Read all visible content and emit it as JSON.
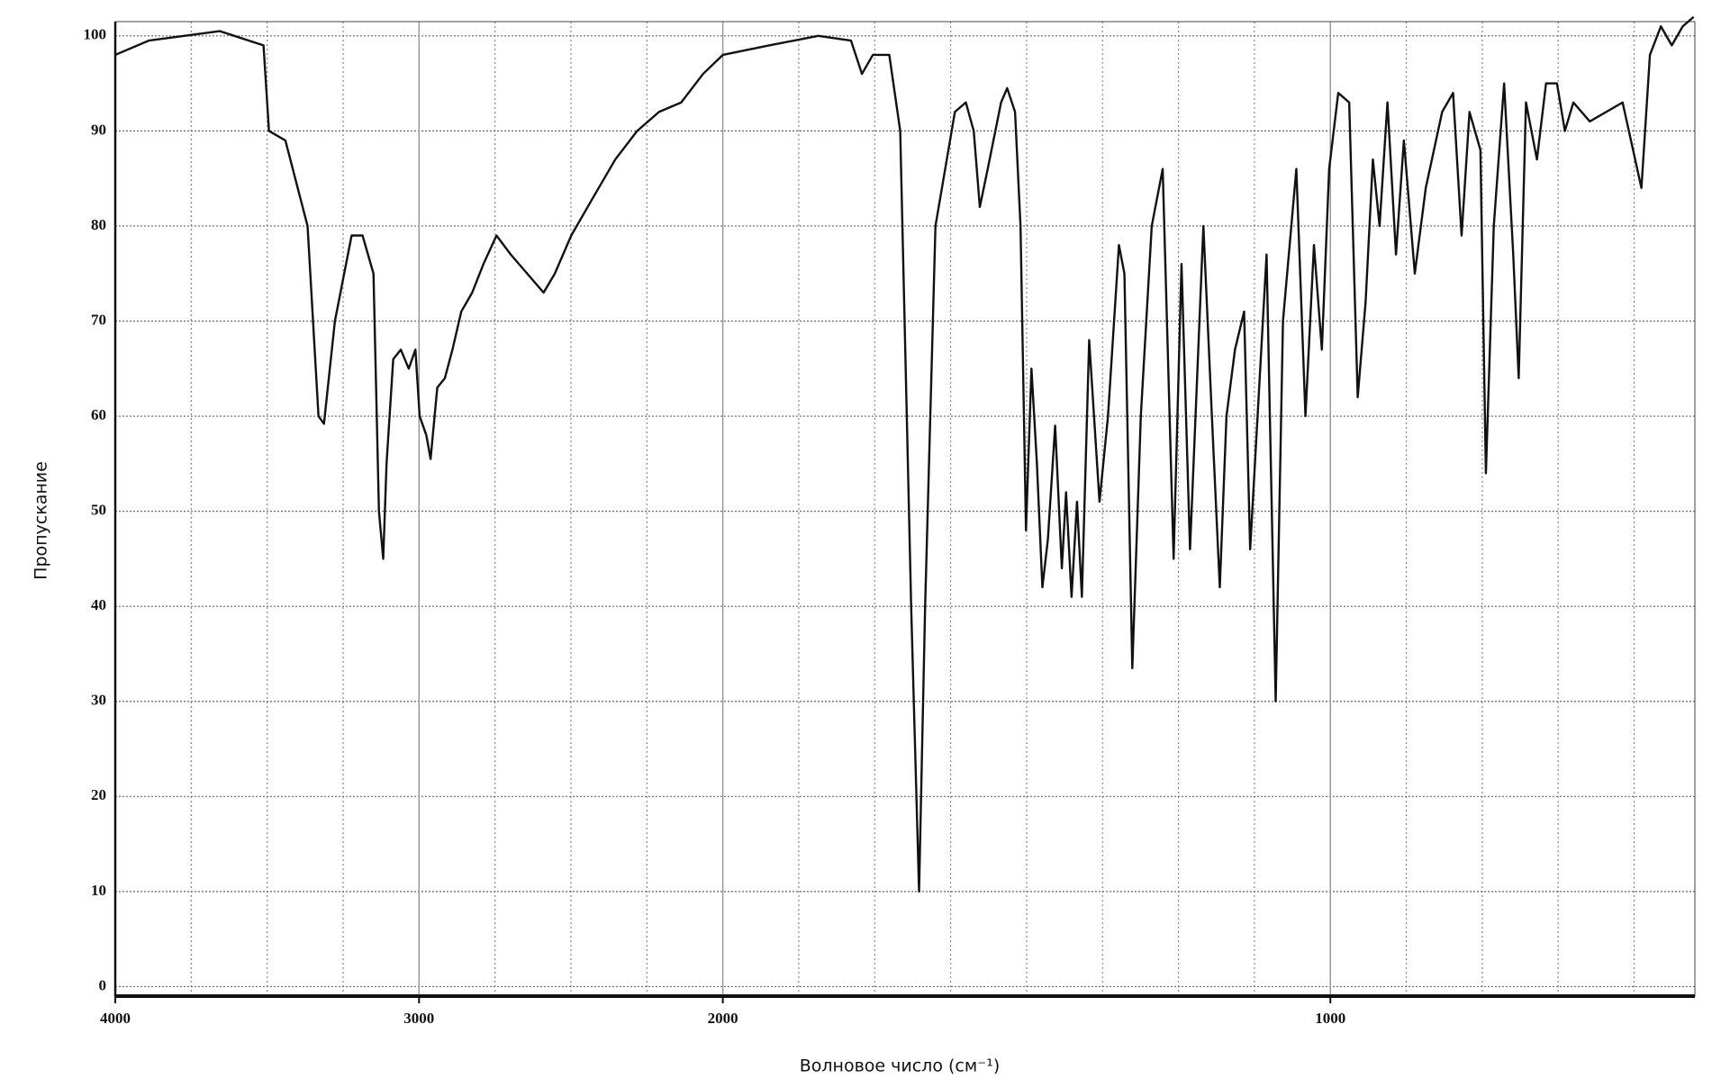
{
  "chart_data": {
    "type": "line",
    "ylabel": "Пропускание",
    "xlabel": "Волновое число (см⁻¹)",
    "x": [
      4000,
      3890,
      3656,
      3512,
      3494,
      3440,
      3367,
      3331,
      3313,
      3277,
      3222,
      3186,
      3150,
      3132,
      3118,
      3107,
      3085,
      3060,
      3034,
      3012,
      2998,
      2976,
      2962,
      2940,
      2915,
      2890,
      2861,
      2825,
      2788,
      2745,
      2698,
      2644,
      2590,
      2553,
      2499,
      2427,
      2354,
      2282,
      2210,
      2137,
      2065,
      2000,
      1924,
      1843,
      1789,
      1771,
      1753,
      1726,
      1708,
      1690,
      1677,
      1667,
      1650,
      1618,
      1600,
      1587,
      1577,
      1564,
      1542,
      1532,
      1519,
      1510,
      1501,
      1492,
      1483,
      1474,
      1465,
      1453,
      1442,
      1435,
      1426,
      1417,
      1409,
      1397,
      1380,
      1366,
      1348,
      1339,
      1326,
      1312,
      1294,
      1276,
      1258,
      1245,
      1231,
      1209,
      1195,
      1182,
      1171,
      1157,
      1142,
      1132,
      1105,
      1090,
      1078,
      1056,
      1041,
      1027,
      1014,
      1002,
      987,
      969,
      955,
      942,
      930,
      919,
      906,
      892,
      879,
      861,
      843,
      816,
      798,
      784,
      771,
      753,
      744,
      731,
      714,
      699,
      690,
      678,
      660,
      645,
      627,
      614,
      600,
      573,
      519,
      488,
      474,
      456,
      438,
      420,
      402
    ],
    "values": [
      98,
      99.5,
      100.5,
      99,
      90,
      89,
      80,
      60,
      59.2,
      70,
      79,
      79,
      75,
      50,
      45,
      55,
      66,
      67,
      65,
      67,
      60,
      58,
      55.5,
      63,
      64,
      67,
      71,
      73,
      76,
      79,
      77,
      75,
      73,
      75,
      79,
      83,
      87,
      90,
      92,
      93,
      96,
      98,
      99,
      100,
      99.5,
      96,
      98,
      98,
      90,
      40,
      10,
      40,
      80,
      92,
      93,
      90,
      82,
      86,
      93,
      94.5,
      92,
      80,
      48,
      65,
      55,
      42,
      47,
      59,
      44,
      52,
      41,
      51,
      41,
      68,
      51,
      60,
      78,
      75,
      33.5,
      60,
      80,
      86,
      45,
      76,
      46,
      80,
      60,
      42,
      60,
      67,
      71,
      46,
      77,
      30,
      70,
      86,
      60,
      78,
      67,
      86,
      94,
      93,
      62,
      72,
      87,
      80,
      93,
      77,
      89,
      75,
      84,
      92,
      94,
      79,
      92,
      88,
      54,
      80,
      95,
      77,
      64,
      93,
      87,
      95,
      95,
      90,
      93,
      91,
      93,
      84,
      98,
      101,
      99,
      101,
      102
    ],
    "color": "#111111",
    "xlim": [
      4000,
      400
    ],
    "ylim": [
      -1,
      101.5
    ],
    "xticks": [
      4000,
      3000,
      2000,
      1000
    ],
    "x_scale_change": {
      "at": 2000,
      "factor": 2
    },
    "x_minor_ticks": [
      3750,
      3500,
      3250,
      2750,
      2500,
      2250,
      1875,
      1750,
      1625,
      1500,
      1375,
      1250,
      1125,
      875,
      750,
      625,
      500
    ],
    "yticks": [
      0,
      10,
      20,
      30,
      40,
      50,
      60,
      70,
      80,
      90,
      100
    ],
    "grid": true
  }
}
